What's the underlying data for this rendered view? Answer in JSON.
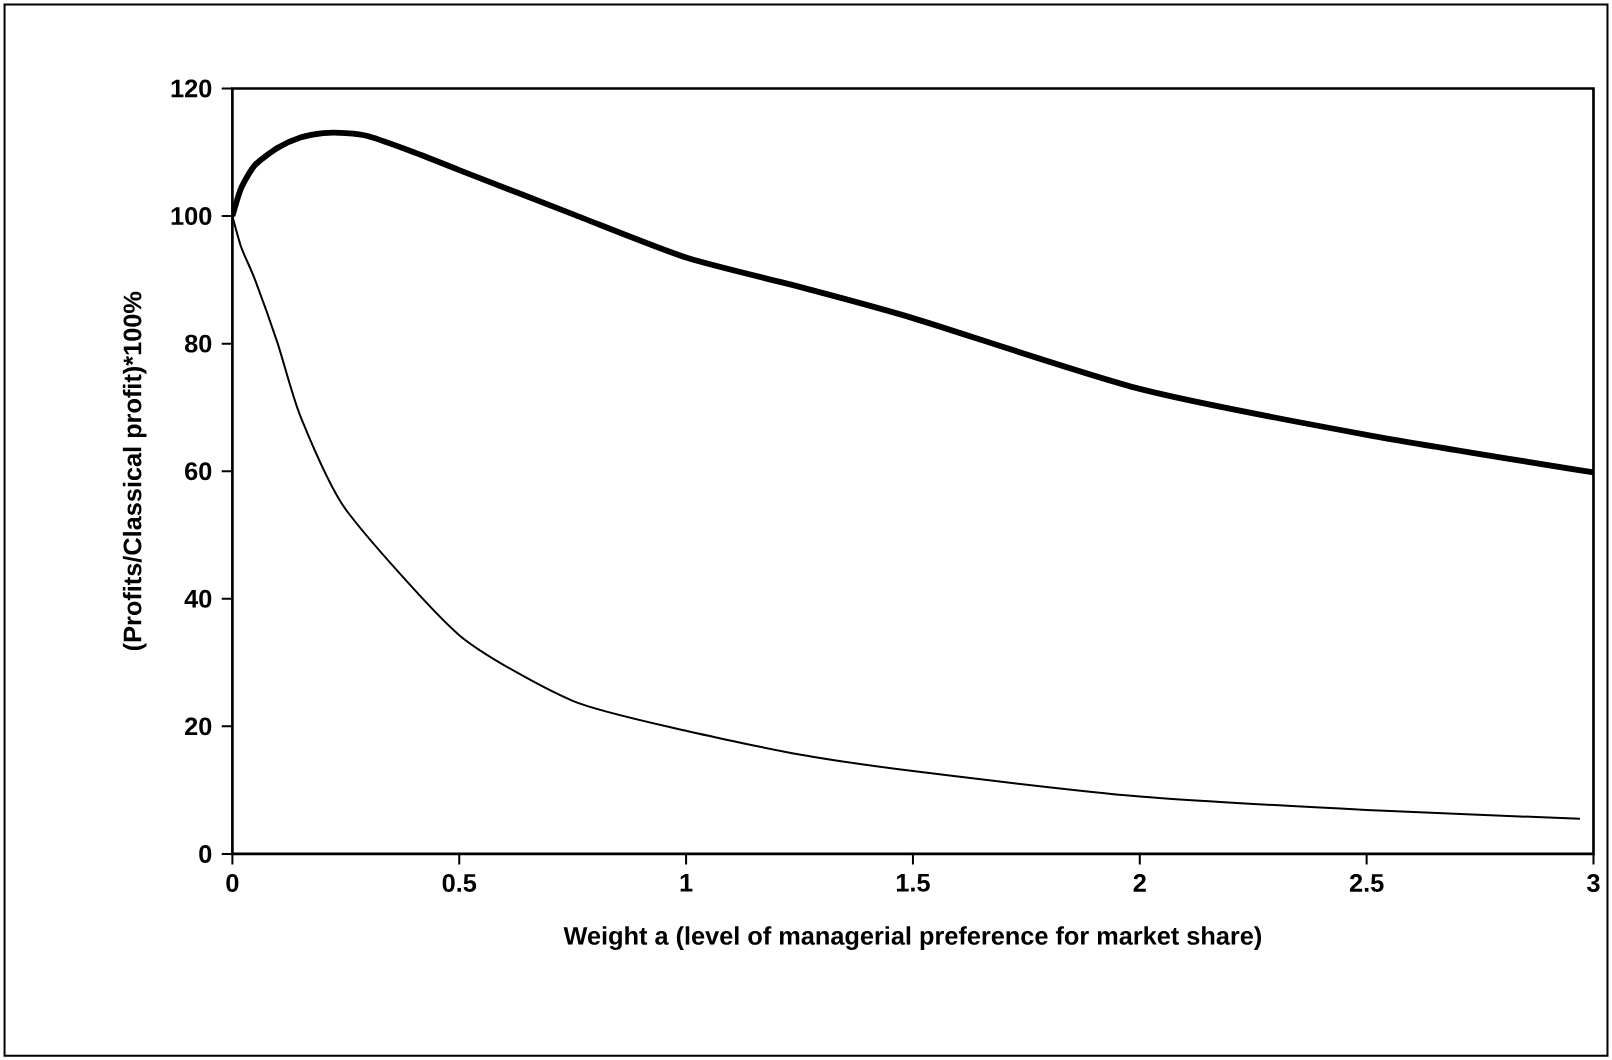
{
  "chart_data": {
    "type": "line",
    "xlabel": "Weight a (level of managerial preference for market share)",
    "ylabel": "(Profits/Classical profit)*100%",
    "xlim": [
      0,
      3
    ],
    "ylim": [
      0,
      120
    ],
    "xticks": [
      0,
      0.5,
      1,
      1.5,
      2,
      2.5,
      3
    ],
    "yticks": [
      0,
      20,
      40,
      60,
      80,
      100,
      120
    ],
    "grid": false,
    "marker": "none",
    "line_style": "solid",
    "series": [
      {
        "color": "#000000",
        "x": [
          0,
          0.02,
          0.05,
          0.1,
          0.15,
          0.2,
          0.25,
          0.3,
          0.4,
          0.5,
          0.75,
          1,
          1.25,
          1.5,
          2,
          2.5,
          3
        ],
        "values": [
          100,
          104.5,
          108,
          110.7,
          112.3,
          113,
          113,
          112.5,
          110,
          107.2,
          100.3,
          93.5,
          88.9,
          84,
          72.9,
          65.7,
          59.8
        ]
      },
      {
        "color": "#000000",
        "x": [
          0,
          0.02,
          0.05,
          0.1,
          0.15,
          0.25,
          0.5,
          0.75,
          1,
          1.25,
          1.5,
          2,
          2.5,
          2.97
        ],
        "values": [
          100,
          95,
          90,
          80,
          68.6,
          54,
          34.3,
          24,
          19.3,
          15.6,
          13,
          9,
          6.9,
          5.5
        ]
      }
    ]
  }
}
